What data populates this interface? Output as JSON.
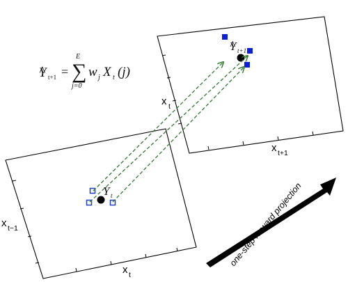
{
  "formula": {
    "lhs_symbol": "Y",
    "lhs_hat": "^",
    "lhs_subscript": "t+1",
    "equals": "=",
    "sum_symbol": "∑",
    "sum_upper": "E",
    "sum_lower": "j=0",
    "weight": "w",
    "weight_subscript": "j",
    "variable": "X",
    "variable_subscript": "t",
    "argument": "(j)"
  },
  "left_panel": {
    "x_axis_label": "x",
    "x_axis_subscript": "t",
    "y_axis_label": "x",
    "y_axis_subscript": "t−1",
    "point_symbol": "Y",
    "point_subscript": "t"
  },
  "right_panel": {
    "x_axis_label": "x",
    "x_axis_subscript": "t+1",
    "y_axis_label": "x",
    "y_axis_subscript": "t",
    "point_symbol": "Y",
    "point_hat": "^",
    "point_subscript": "t+1"
  },
  "big_arrow": {
    "label": "one-step forward projection"
  },
  "colors": {
    "neighbor_marker": "#1f3fbf",
    "projected_marker": "#0a1fd8",
    "projection_arrow": "#2f7a2f",
    "big_arrow": "#000000",
    "target_point": "#000000"
  }
}
